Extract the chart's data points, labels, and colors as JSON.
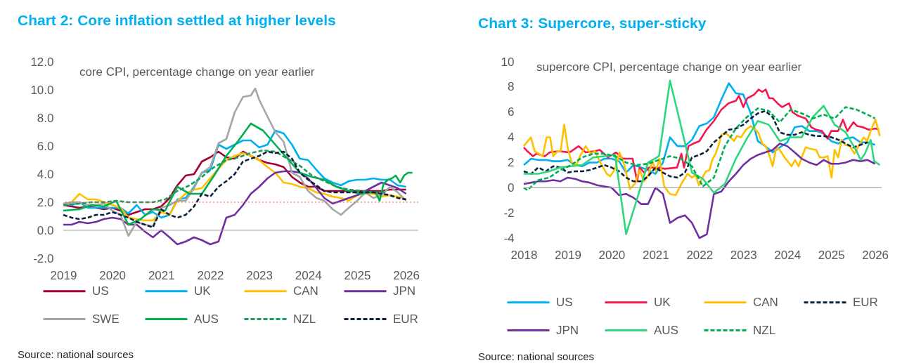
{
  "chart_data": [
    {
      "type": "line",
      "title": "Chart 2: Core inflation settled at higher levels",
      "subtitle": "core CPI, percentage change on year earlier",
      "annotations": [
        "Source: national sources"
      ],
      "xlim": [
        2019,
        2026.25
      ],
      "xticks": [
        2019,
        2020,
        2021,
        2022,
        2023,
        2024,
        2025,
        2026
      ],
      "ylim": [
        -2,
        12
      ],
      "yticks": [
        {
          "value": -2,
          "label": "-2.0"
        },
        {
          "value": 0,
          "label": "0.0"
        },
        {
          "value": 2,
          "label": "2.0"
        },
        {
          "value": 4,
          "label": "4.0"
        },
        {
          "value": 6,
          "label": "6.0"
        },
        {
          "value": 8,
          "label": "8.0"
        },
        {
          "value": 10,
          "label": "10.0"
        },
        {
          "value": 12,
          "label": "12.0"
        }
      ],
      "legend": "bottom",
      "ref_lines": [
        {
          "axis": "y",
          "value": 2,
          "color": "#ff5050",
          "line_style": "dotted"
        },
        {
          "axis": "y",
          "value": 0,
          "color": "#a6a6a6"
        }
      ],
      "x": [
        2019,
        2019.17,
        2019.33,
        2019.5,
        2019.67,
        2019.83,
        2020,
        2020.17,
        2020.33,
        2020.5,
        2020.67,
        2020.83,
        2021,
        2021.17,
        2021.33,
        2021.5,
        2021.67,
        2021.83,
        2022,
        2022.17,
        2022.33,
        2022.5,
        2022.67,
        2022.83,
        2023,
        2023.17,
        2023.33,
        2023.5,
        2023.67,
        2023.83,
        2024,
        2024.17,
        2024.33,
        2024.5,
        2024.67,
        2024.83,
        2025,
        2025.17,
        2025.33,
        2025.5,
        2025.67,
        2025.83,
        2026
      ],
      "series": [
        {
          "name": "US",
          "color": "#a50034",
          "values": [
            1.8,
            1.7,
            1.6,
            1.7,
            1.6,
            1.5,
            1.6,
            1.4,
            1.1,
            1.3,
            1.5,
            1.5,
            1.7,
            2.3,
            3.2,
            3.9,
            4.0,
            4.9,
            5.2,
            5.6,
            5.2,
            5.1,
            5.6,
            5.3,
            5.0,
            4.8,
            4.7,
            4.5,
            3.8,
            3.4,
            3.1,
            3.1,
            2.8,
            2.8,
            2.8,
            2.8,
            2.8,
            2.8,
            2.8,
            2.8,
            2.9,
            2.9,
            2.9
          ]
        },
        {
          "name": "UK",
          "color": "#00b0f0",
          "values": [
            1.9,
            1.8,
            2.0,
            1.6,
            1.6,
            1.6,
            1.6,
            1.6,
            1.2,
            1.8,
            1.1,
            1.3,
            0.9,
            1.1,
            2.2,
            2.3,
            3.1,
            4.1,
            4.3,
            6.1,
            5.8,
            6.1,
            6.4,
            6.4,
            5.9,
            6.1,
            7.1,
            6.9,
            6.1,
            5.1,
            5.0,
            4.3,
            3.7,
            3.4,
            3.2,
            3.5,
            3.6,
            3.6,
            3.7,
            3.6,
            3.6,
            3.2,
            3.1
          ]
        },
        {
          "name": "CAN",
          "color": "#ffc000",
          "values": [
            1.8,
            2.0,
            2.6,
            2.2,
            2.2,
            2.0,
            1.8,
            1.6,
            0.9,
            0.8,
            0.7,
            0.7,
            1.3,
            1.1,
            2.1,
            2.6,
            2.9,
            3.0,
            3.7,
            4.4,
            5.0,
            5.3,
            5.5,
            5.3,
            5.0,
            4.5,
            4.1,
            3.4,
            3.3,
            3.1,
            3.0,
            2.7,
            2.6,
            2.4,
            2.3,
            2.1,
            2.5,
            2.6,
            2.6,
            2.4,
            2.5,
            2.4,
            2.2
          ]
        },
        {
          "name": "JPN",
          "color": "#7030a0",
          "values": [
            0.4,
            0.4,
            0.6,
            0.5,
            0.6,
            0.8,
            0.9,
            0.8,
            0.4,
            0.4,
            -0.1,
            -0.5,
            0.0,
            -0.5,
            -1.0,
            -0.8,
            -0.5,
            -0.7,
            -1.0,
            -0.8,
            0.9,
            1.1,
            1.8,
            2.6,
            3.1,
            3.7,
            4.1,
            4.2,
            4.2,
            4.1,
            3.7,
            3.0,
            2.3,
            1.9,
            2.1,
            2.3,
            2.5,
            2.8,
            3.1,
            3.4,
            3.2,
            3.0,
            2.6
          ]
        },
        {
          "name": "SWE",
          "color": "#a6a6a6",
          "x": [
            2019,
            2019.17,
            2019.33,
            2019.5,
            2019.67,
            2019.83,
            2020,
            2020.17,
            2020.33,
            2020.5,
            2020.67,
            2020.83,
            2021,
            2021.17,
            2021.33,
            2021.5,
            2021.67,
            2021.83,
            2022,
            2022.17,
            2022.33,
            2022.5,
            2022.67,
            2022.83,
            2022.92,
            2023,
            2023.17,
            2023.33,
            2023.5,
            2023.67,
            2023.83,
            2024,
            2024.17,
            2024.33,
            2024.5,
            2024.67,
            2024.83,
            2025,
            2025.17,
            2025.33,
            2025.5,
            2025.67,
            2025.83,
            2026
          ],
          "values": [
            1.9,
            2.0,
            2.0,
            1.8,
            1.8,
            1.9,
            1.4,
            1.1,
            -0.4,
            0.6,
            0.4,
            0.3,
            1.6,
            1.8,
            2.1,
            2.1,
            3.0,
            4.1,
            4.5,
            6.2,
            6.5,
            8.4,
            9.5,
            9.6,
            10.1,
            9.3,
            8.1,
            7.0,
            6.3,
            4.1,
            3.8,
            2.8,
            2.3,
            2.1,
            1.5,
            1.1,
            1.6,
            2.1,
            2.7,
            2.3,
            2.5,
            3.1,
            2.7,
            2.1
          ]
        },
        {
          "name": "AUS",
          "color": "#00b050",
          "x": [
            2019,
            2019.33,
            2019.58,
            2019.83,
            2020.08,
            2020.33,
            2020.58,
            2020.83,
            2021.08,
            2021.33,
            2021.58,
            2021.83,
            2022.08,
            2022.33,
            2022.58,
            2022.83,
            2023.08,
            2023.33,
            2023.58,
            2023.83,
            2024.08,
            2024.33,
            2024.58,
            2024.83,
            2025.08,
            2025.21,
            2025.29,
            2025.38,
            2025.46,
            2025.54,
            2025.63,
            2025.71,
            2025.79,
            2025.88,
            2025.96,
            2026.04,
            2026.13
          ],
          "values": [
            1.4,
            1.5,
            1.8,
            1.7,
            2.1,
            0.4,
            0.8,
            1.5,
            1.4,
            3.1,
            2.6,
            2.6,
            3.9,
            5.3,
            6.4,
            7.6,
            7.1,
            6.1,
            5.1,
            4.1,
            3.8,
            3.6,
            3.1,
            2.8,
            2.6,
            2.7,
            2.7,
            2.7,
            2.1,
            3.3,
            3.6,
            3.7,
            3.9,
            3.4,
            3.9,
            4.1,
            4.1
          ]
        },
        {
          "name": "NZL",
          "color": "#1a9e5c",
          "line_style": "dashed",
          "x": [
            2019,
            2019.33,
            2019.58,
            2019.83,
            2020.08,
            2020.33,
            2020.58,
            2020.83,
            2021.08,
            2021.33,
            2021.58,
            2021.83,
            2022.08,
            2022.33,
            2022.58,
            2022.83,
            2023.08,
            2023.33,
            2023.58,
            2023.83,
            2024.08,
            2024.33,
            2024.58,
            2024.83,
            2025.08,
            2025.33,
            2025.58
          ],
          "values": [
            1.8,
            1.9,
            2.0,
            2.0,
            2.1,
            2.0,
            2.0,
            2.0,
            2.2,
            2.8,
            3.2,
            3.8,
            4.5,
            5.0,
            5.2,
            5.5,
            5.7,
            5.6,
            5.1,
            4.6,
            3.9,
            3.5,
            3.1,
            2.9,
            2.8,
            2.7,
            2.7
          ]
        },
        {
          "name": "EUR",
          "color": "#0c2340",
          "line_style": "dashed",
          "values": [
            1.1,
            0.9,
            0.8,
            0.9,
            1.1,
            1.1,
            1.3,
            1.1,
            0.9,
            0.6,
            0.4,
            0.2,
            1.5,
            1.1,
            0.9,
            1.1,
            1.7,
            2.6,
            2.4,
            3.1,
            3.5,
            4.0,
            4.9,
            5.1,
            5.3,
            5.6,
            5.5,
            5.6,
            5.1,
            4.1,
            3.6,
            3.2,
            2.8,
            2.7,
            2.7,
            2.7,
            2.7,
            2.7,
            2.7,
            2.6,
            2.5,
            2.3,
            2.2
          ]
        }
      ]
    },
    {
      "type": "line",
      "title": "Chart 3: Supercore, super-sticky",
      "subtitle": "supercore CPI, percentage change on year earlier",
      "annotations": [
        "Source: national sources"
      ],
      "xlim": [
        2018,
        2026.15
      ],
      "xticks": [
        2018,
        2019,
        2020,
        2021,
        2022,
        2023,
        2024,
        2025,
        2026
      ],
      "ylim": [
        -4,
        10
      ],
      "yticks": [
        -4,
        -2,
        0,
        2,
        4,
        6,
        8,
        10
      ],
      "legend": "bottom",
      "ref_lines": [
        {
          "axis": "y",
          "value": 0,
          "color": "#a6a6a6"
        }
      ],
      "x": [
        2018,
        2018.17,
        2018.33,
        2018.5,
        2018.67,
        2018.83,
        2019,
        2019.17,
        2019.33,
        2019.5,
        2019.67,
        2019.83,
        2020,
        2020.17,
        2020.33,
        2020.5,
        2020.67,
        2020.83,
        2021,
        2021.17,
        2021.33,
        2021.5,
        2021.67,
        2021.83,
        2022,
        2022.17,
        2022.33,
        2022.5,
        2022.67,
        2022.83,
        2023,
        2023.17,
        2023.33,
        2023.5,
        2023.67,
        2023.83,
        2024,
        2024.17,
        2024.33,
        2024.5,
        2024.67,
        2024.83,
        2025,
        2025.17,
        2025.33,
        2025.5,
        2025.67,
        2025.83,
        2026
      ],
      "series": [
        {
          "name": "US",
          "color": "#00b0f0",
          "values": [
            1.8,
            2.3,
            2.2,
            2.2,
            2.1,
            2.1,
            2.2,
            1.8,
            1.7,
            2.0,
            2.0,
            2.3,
            2.3,
            2.1,
            1.2,
            1.8,
            1.6,
            1.4,
            1.1,
            2.0,
            4.0,
            3.3,
            3.3,
            3.8,
            4.9,
            5.1,
            5.6,
            7.0,
            8.3,
            7.5,
            7.4,
            5.9,
            3.7,
            3.3,
            2.8,
            3.2,
            3.6,
            4.8,
            4.9,
            4.5,
            4.5,
            4.3,
            3.7,
            3.5,
            3.9,
            4.0,
            3.6,
            3.6,
            3.4
          ]
        },
        {
          "name": "UK",
          "color": "#f5174f",
          "x": [
            2018,
            2018.08,
            2018.21,
            2018.29,
            2018.48,
            2018.59,
            2018.8,
            2019.04,
            2019.25,
            2019.41,
            2019.62,
            2019.73,
            2019.92,
            2020.1,
            2020.26,
            2020.48,
            2020.58,
            2020.64,
            2020.74,
            2020.85,
            2021.01,
            2021.22,
            2021.49,
            2021.59,
            2021.65,
            2021.75,
            2021.86,
            2022,
            2022.16,
            2022.33,
            2022.5,
            2022.66,
            2022.83,
            2022.9,
            2023,
            2023.09,
            2023.25,
            2023.35,
            2023.43,
            2023.51,
            2023.59,
            2023.67,
            2023.78,
            2023.88,
            2024.04,
            2024.12,
            2024.25,
            2024.42,
            2024.55,
            2024.66,
            2024.79,
            2024.92,
            2025,
            2025.16,
            2025.27,
            2025.37,
            2025.51,
            2025.59,
            2025.72,
            2025.86,
            2026.01,
            2026.09
          ],
          "values": [
            3.2,
            2.9,
            2.5,
            2.7,
            2.5,
            2.8,
            2.9,
            2.8,
            3.3,
            2.8,
            2.9,
            3.0,
            2.4,
            2.8,
            2.3,
            2.3,
            0.5,
            1.6,
            1.2,
            1.6,
            1.6,
            1.5,
            1.6,
            2.7,
            1.6,
            3.3,
            3.5,
            3.7,
            4.6,
            5.3,
            6.2,
            6.7,
            6.9,
            7.3,
            6.4,
            7.1,
            7.4,
            7.8,
            7.6,
            7.8,
            7.1,
            7.1,
            6.7,
            6.4,
            6.7,
            6.0,
            5.7,
            5.5,
            4.8,
            4.6,
            4.5,
            3.9,
            4.5,
            4.5,
            5.4,
            4.5,
            5.2,
            4.9,
            4.8,
            4.6,
            4.7,
            4.6
          ]
        },
        {
          "name": "CAN",
          "color": "#ffc000",
          "x": [
            2018,
            2018.16,
            2018.25,
            2018.43,
            2018.52,
            2018.6,
            2018.67,
            2018.77,
            2018.84,
            2018.92,
            2019.01,
            2019.09,
            2019.2,
            2019.28,
            2019.41,
            2019.52,
            2019.62,
            2019.76,
            2019.89,
            2019.97,
            2020.08,
            2020.18,
            2020.29,
            2020.42,
            2020.53,
            2020.64,
            2020.74,
            2020.84,
            2020.93,
            2021.01,
            2021.09,
            2021.2,
            2021.33,
            2021.46,
            2021.59,
            2021.73,
            2021.83,
            2021.91,
            2021.99,
            2022.07,
            2022.15,
            2022.23,
            2022.29,
            2022.37,
            2022.45,
            2022.5,
            2022.61,
            2022.71,
            2022.79,
            2022.85,
            2022.95,
            2023.06,
            2023.17,
            2023.28,
            2023.35,
            2023.43,
            2023.51,
            2023.59,
            2023.67,
            2023.75,
            2023.83,
            2023.94,
            2024.1,
            2024.18,
            2024.26,
            2024.34,
            2024.42,
            2024.52,
            2024.66,
            2024.74,
            2024.84,
            2024.92,
            2025.01,
            2025.08,
            2025.16,
            2025.24,
            2025.32,
            2025.43,
            2025.53,
            2025.64,
            2025.74,
            2025.82,
            2025.91,
            2026.01,
            2026.11
          ],
          "values": [
            3.3,
            4.0,
            2.9,
            2.5,
            4.0,
            4.0,
            2.5,
            2.9,
            2.9,
            5.0,
            3.0,
            2.0,
            1.8,
            2.5,
            3.3,
            2.7,
            2.9,
            1.9,
            1.1,
            0.9,
            1.5,
            2.8,
            1.8,
            -0.1,
            0.3,
            1.4,
            0.5,
            1.0,
            2.1,
            1.3,
            2.3,
            0.1,
            -0.5,
            -0.6,
            0.3,
            1.1,
            0.8,
            1.0,
            0.2,
            0.8,
            1.3,
            1.4,
            2.2,
            2.7,
            3.5,
            4.2,
            4.3,
            4.0,
            3.7,
            4.1,
            4.0,
            4.6,
            4.9,
            4.6,
            4.3,
            3.5,
            3.3,
            2.6,
            1.7,
            3.2,
            3.0,
            2.4,
            1.7,
            2.2,
            1.7,
            2.5,
            3.2,
            3.1,
            3.0,
            2.4,
            2.4,
            2.5,
            0.8,
            3.0,
            2.4,
            3.8,
            3.4,
            3.3,
            2.7,
            3.4,
            4.0,
            3.7,
            4.6,
            5.4,
            4.1
          ]
        },
        {
          "name": "EUR",
          "color": "#0c2340",
          "line_style": "dashed",
          "values": [
            1.3,
            1.1,
            1.6,
            1.3,
            1.7,
            1.6,
            1.2,
            1.3,
            1.3,
            1.4,
            1.6,
            1.8,
            1.6,
            1.3,
            0.8,
            0.5,
            0.5,
            0.9,
            1.6,
            1.2,
            0.9,
            0.8,
            1.2,
            2.4,
            2.6,
            2.9,
            3.6,
            4.1,
            4.6,
            4.7,
            5.0,
            5.5,
            5.9,
            6.1,
            5.6,
            4.4,
            4.2,
            4.2,
            4.4,
            4.2,
            4.1,
            4.1,
            4.0,
            3.8,
            3.5,
            3.2,
            3.4,
            3.6,
            null
          ]
        },
        {
          "name": "JPN",
          "color": "#7030a0",
          "values": [
            0.3,
            0.4,
            0.5,
            0.5,
            0.6,
            0.5,
            0.8,
            0.7,
            0.5,
            0.4,
            0.2,
            0.1,
            0.0,
            -0.6,
            -0.5,
            -0.8,
            -1.3,
            -1.3,
            0.0,
            -0.5,
            -2.8,
            -2.4,
            -2.2,
            -2.8,
            -4.0,
            -3.7,
            -0.5,
            -0.3,
            0.5,
            1.1,
            1.8,
            2.3,
            2.6,
            2.8,
            3.0,
            3.5,
            3.3,
            2.8,
            2.3,
            2.0,
            1.8,
            2.2,
            1.9,
            1.9,
            2.0,
            2.2,
            2.1,
            2.2,
            1.9
          ]
        },
        {
          "name": "AUS",
          "color": "#2fd77c",
          "x": [
            2018,
            2018.33,
            2018.58,
            2018.83,
            2019.08,
            2019.33,
            2019.58,
            2019.83,
            2020.08,
            2020.33,
            2020.58,
            2020.83,
            2021.08,
            2021.33,
            2021.58,
            2021.83,
            2022.08,
            2022.33,
            2022.58,
            2022.83,
            2023.08,
            2023.33,
            2023.58,
            2023.83,
            2024.08,
            2024.33,
            2024.58,
            2024.83,
            2025.08,
            2025.33,
            2025.58,
            2025.67,
            2025.77,
            2025.9,
            2025.98,
            2026.11
          ],
          "values": [
            1.1,
            1.1,
            1.3,
            1.6,
            1.7,
            1.8,
            2.4,
            2.5,
            2.6,
            -3.7,
            -0.9,
            2.0,
            2.5,
            8.5,
            4.9,
            1.2,
            0.7,
            -0.4,
            0.3,
            2.3,
            3.9,
            5.3,
            5.0,
            3.7,
            4.0,
            4.0,
            5.6,
            6.5,
            5.0,
            4.4,
            2.9,
            2.2,
            2.7,
            3.8,
            2.1,
            1.8
          ]
        },
        {
          "name": "NZL",
          "color": "#00b050",
          "line_style": "dashed",
          "x": [
            2018,
            2018.08,
            2018.33,
            2018.58,
            2018.83,
            2019.08,
            2019.33,
            2019.58,
            2019.83,
            2020.08,
            2020.33,
            2020.58,
            2020.83,
            2021.08,
            2021.33,
            2021.58,
            2021.83,
            2022.08,
            2022.33,
            2022.58,
            2022.83,
            2023.08,
            2023.33,
            2023.58,
            2023.83,
            2024.08,
            2024.33,
            2024.58,
            2024.83,
            2025.08,
            2025.33,
            2025.58,
            2025.83,
            2026
          ],
          "values": [
            0.0,
            -0.2,
            0.6,
            0.8,
            1.4,
            1.8,
            2.4,
            2.7,
            2.7,
            2.5,
            2.0,
            1.8,
            1.9,
            2.2,
            2.5,
            2.3,
            1.7,
            0.1,
            0.8,
            3.3,
            4.7,
            5.6,
            6.3,
            6.1,
            5.2,
            6.2,
            5.9,
            5.5,
            5.8,
            5.5,
            6.4,
            6.2,
            5.8,
            5.5
          ]
        }
      ]
    }
  ]
}
